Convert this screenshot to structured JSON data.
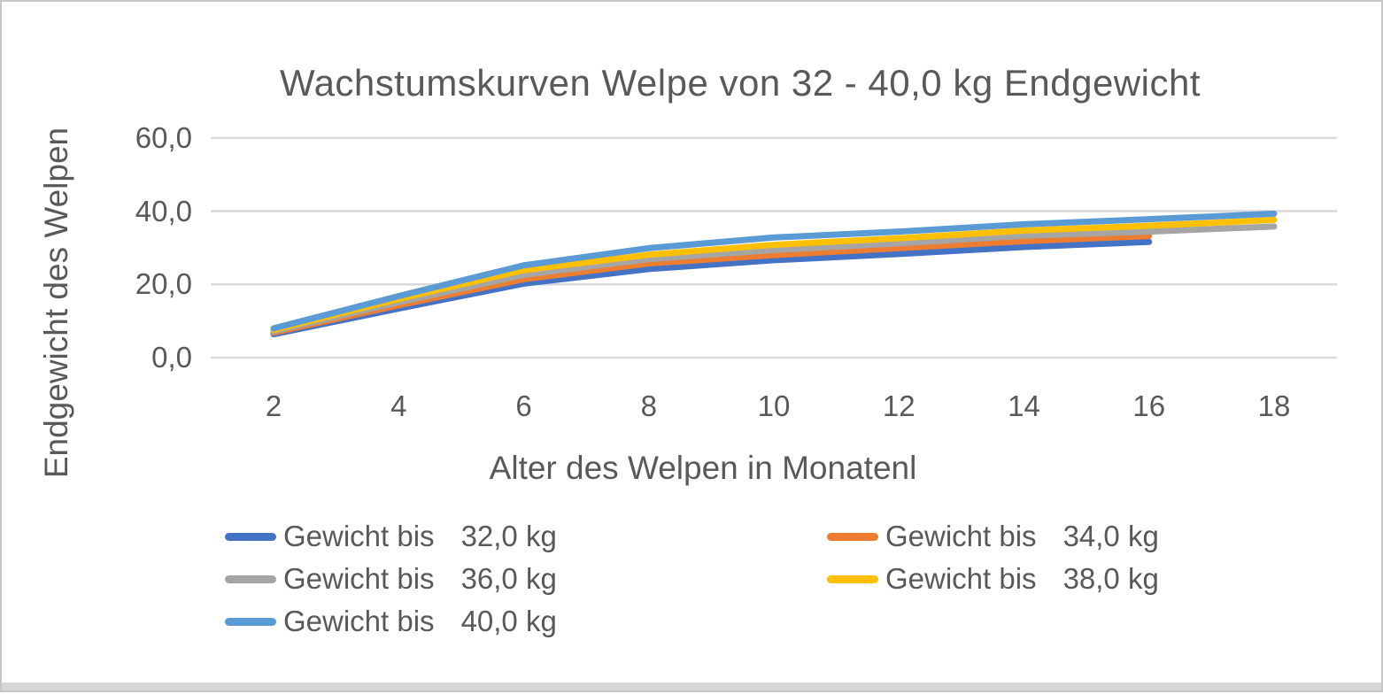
{
  "frame": {
    "background": "#FFFFFF",
    "border_color": "#C6C6C6",
    "bottom_bar_color": "#D6D6D6"
  },
  "chart_data": {
    "type": "line",
    "title": "Wachstumskurven Welpe von 32 - 40,0 kg Endgewicht",
    "xlabel": "Alter des Welpen in Monatenl",
    "ylabel": "Endgewicht des Welpen",
    "text_color": "#595959",
    "gridline_color": "#D9D9D9",
    "grid": "horizontal",
    "legend_position": "bottom",
    "x": [
      2,
      4,
      6,
      8,
      10,
      12,
      14,
      16,
      18
    ],
    "x_tick_labels": [
      "2",
      "4",
      "6",
      "8",
      "10",
      "12",
      "14",
      "16",
      "18"
    ],
    "y_ticks": [
      {
        "value": 0,
        "label": "0,0"
      },
      {
        "value": 20,
        "label": "20,0"
      },
      {
        "value": 40,
        "label": "40,0"
      },
      {
        "value": 60,
        "label": "60,0"
      }
    ],
    "ylim": [
      0,
      60
    ],
    "series": [
      {
        "name": "Gewicht bis 32,0 kg",
        "label_prefix": "Gewicht bis",
        "label_value": "32,0 kg",
        "color": "#4472C4",
        "values": [
          6.4,
          13.4,
          20.2,
          24.2,
          26.6,
          28.3,
          30.2,
          31.6,
          null
        ]
      },
      {
        "name": "Gewicht bis 34,0 kg",
        "label_prefix": "Gewicht bis",
        "label_value": "34,0 kg",
        "color": "#ED7D31",
        "values": [
          6.8,
          14.3,
          21.4,
          25.7,
          28.0,
          29.9,
          31.8,
          33.2,
          null
        ]
      },
      {
        "name": "Gewicht bis 36,0 kg",
        "label_prefix": "Gewicht bis",
        "label_value": "36,0 kg",
        "color": "#A5A5A5",
        "values": [
          7.2,
          15.1,
          22.6,
          26.9,
          29.4,
          31.2,
          33.3,
          34.4,
          35.8
        ]
      },
      {
        "name": "Gewicht bis 38,0 kg",
        "label_prefix": "Gewicht bis",
        "label_value": "38,0 kg",
        "color": "#FFC000",
        "values": [
          7.6,
          16.0,
          23.9,
          28.1,
          30.8,
          32.6,
          34.7,
          36.0,
          37.6
        ]
      },
      {
        "name": "Gewicht bis 40,0 kg",
        "label_prefix": "Gewicht bis",
        "label_value": "40,0 kg",
        "color": "#5B9BD5",
        "values": [
          8.0,
          16.8,
          25.2,
          29.9,
          32.8,
          34.4,
          36.4,
          37.8,
          39.3
        ]
      }
    ]
  }
}
